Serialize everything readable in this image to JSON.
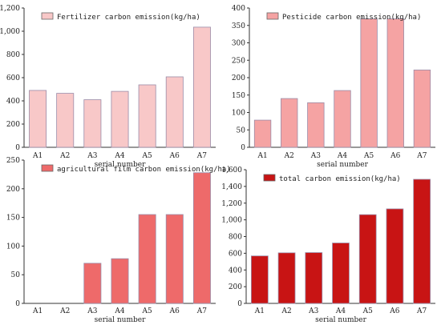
{
  "chart_data": [
    {
      "type": "bar",
      "categories": [
        "A1",
        "A2",
        "A3",
        "A4",
        "A5",
        "A6",
        "A7"
      ],
      "series": [
        {
          "name": "Fertilizer carbon emission(kg/ha)",
          "values": [
            490,
            465,
            410,
            482,
            538,
            607,
            1035
          ]
        }
      ],
      "ylim": [
        0,
        1200
      ],
      "yticks": [
        "0",
        "200",
        "400",
        "600",
        "800",
        "1,000",
        "1,200"
      ],
      "xlabel": "serial number",
      "color": "#f8c8c8",
      "legend": "top-left"
    },
    {
      "type": "bar",
      "categories": [
        "A1",
        "A2",
        "A3",
        "A4",
        "A5",
        "A6",
        "A7"
      ],
      "series": [
        {
          "name": "Pesticide carbon emission(kg/ha)",
          "values": [
            78,
            140,
            128,
            163,
            369,
            369,
            222
          ]
        }
      ],
      "ylim": [
        0,
        400
      ],
      "yticks": [
        "0",
        "50",
        "100",
        "150",
        "200",
        "250",
        "300",
        "350",
        "400"
      ],
      "xlabel": "serial number",
      "color": "#f5a3a3",
      "legend": "top-left"
    },
    {
      "type": "bar",
      "categories": [
        "A1",
        "A2",
        "A3",
        "A4",
        "A5",
        "A6",
        "A7"
      ],
      "series": [
        {
          "name": "agricultural film carbon emission(kg/ha)",
          "values": [
            0,
            0,
            70,
            78,
            155,
            155,
            228
          ]
        }
      ],
      "ylim": [
        0,
        250
      ],
      "yticks": [
        "0",
        "50",
        "100",
        "150",
        "200",
        "250"
      ],
      "xlabel": "serial number",
      "color": "#ee6a6a",
      "legend": "top-left"
    },
    {
      "type": "bar",
      "categories": [
        "A1",
        "A2",
        "A3",
        "A4",
        "A5",
        "A6",
        "A7"
      ],
      "series": [
        {
          "name": "total carbon emission(kg/ha)",
          "values": [
            568,
            605,
            608,
            723,
            1062,
            1131,
            1485
          ]
        }
      ],
      "ylim": [
        0,
        1600
      ],
      "yticks": [
        "0",
        "200",
        "400",
        "600",
        "800",
        "1,000",
        "1,200",
        "1,400",
        "1,600"
      ],
      "xlabel": "serial number",
      "color": "#c81414",
      "legend": "top-left"
    }
  ]
}
